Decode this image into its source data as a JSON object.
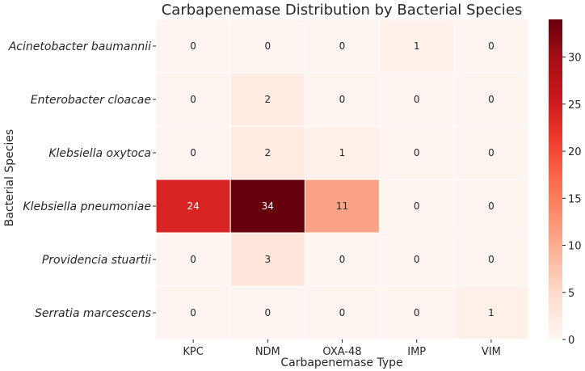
{
  "chart_data": {
    "type": "heatmap",
    "title": "Carbapenemase Distribution by Bacterial Species",
    "xlabel": "Carbapenemase Type",
    "ylabel": "Bacterial Species",
    "x_categories": [
      "KPC",
      "NDM",
      "OXA-48",
      "IMP",
      "VIM"
    ],
    "y_categories": [
      "Acinetobacter baumannii",
      "Enterobacter cloacae",
      "Klebsiella oxytoca",
      "Klebsiella pneumoniae",
      "Providencia stuartii",
      "Serratia marcescens"
    ],
    "values": [
      [
        0,
        0,
        0,
        1,
        0
      ],
      [
        0,
        2,
        0,
        0,
        0
      ],
      [
        0,
        2,
        1,
        0,
        0
      ],
      [
        24,
        34,
        11,
        0,
        0
      ],
      [
        0,
        3,
        0,
        0,
        0
      ],
      [
        0,
        0,
        0,
        0,
        1
      ]
    ],
    "colorscale": "Reds",
    "colorbar_range": [
      0,
      34
    ],
    "colorbar_ticks": [
      0,
      5,
      10,
      15,
      20,
      25,
      30
    ]
  }
}
